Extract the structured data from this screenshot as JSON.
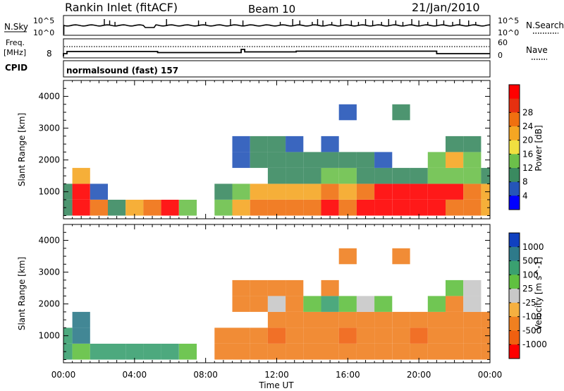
{
  "header": {
    "station": "Rankin Inlet (fitACF)",
    "beam": "Beam 10",
    "date": "21/Jan/2010"
  },
  "nsky_panel": {
    "left_label": "N.Sky",
    "left_ticks": [
      "10^5",
      "10^0"
    ],
    "right_ticks": [
      "10^5",
      "10^0"
    ],
    "right_label": "N.Search",
    "right_label_style": "dotted line"
  },
  "freq_panel": {
    "left_label_1": "Freq.",
    "left_label_2": "[MHz]",
    "left_tick": "8",
    "right_ticks": [
      "60",
      "0"
    ],
    "right_label": "Nave",
    "right_label_style": "dotted line"
  },
  "cpid_panel": {
    "label": "CPID",
    "value": "normalsound (fast) 157"
  },
  "x_axis": {
    "label": "Time UT",
    "ticks": [
      "00:00",
      "04:00",
      "08:00",
      "12:00",
      "16:00",
      "20:00",
      "00:00"
    ]
  },
  "panels": [
    {
      "id": "power",
      "ylabel": "Slant Range [km]",
      "yticks": [
        "1000",
        "2000",
        "3000",
        "4000"
      ],
      "ylim": [
        150,
        4500
      ],
      "colorbar": {
        "label": "Power [dB]",
        "ticks": [
          "4",
          "8",
          "12",
          "16",
          "20",
          "24",
          "28"
        ],
        "colors": [
          "#0000ff",
          "#2555b8",
          "#3a8a60",
          "#6cc04a",
          "#f0e040",
          "#f5a623",
          "#f07010",
          "#e63010",
          "#ff0000"
        ]
      }
    },
    {
      "id": "velocity",
      "ylabel": "Slant Range [km]",
      "yticks": [
        "1000",
        "2000",
        "3000",
        "4000"
      ],
      "ylim": [
        150,
        4500
      ],
      "colorbar": {
        "label": "Velocity [m s^-1]",
        "ticks": [
          "1000",
          "500",
          "100",
          "25",
          "-25",
          "-100",
          "-500",
          "-1000"
        ],
        "colors": [
          "#1040c0",
          "#2e7a8a",
          "#3aa070",
          "#60c040",
          "#c8c8c8",
          "#f5b040",
          "#f08020",
          "#f06010",
          "#ff0000"
        ]
      }
    }
  ],
  "chart_data": {
    "type": "heatmap",
    "x": [
      "00:00",
      "01:00",
      "02:00",
      "03:00",
      "04:00",
      "05:00",
      "06:00",
      "07:00",
      "08:00",
      "09:00",
      "10:00",
      "11:00",
      "12:00",
      "13:00",
      "14:00",
      "15:00",
      "16:00",
      "17:00",
      "18:00",
      "19:00",
      "20:00",
      "21:00",
      "22:00",
      "23:00",
      "24:00"
    ],
    "y": [
      500,
      1000,
      1500,
      2000,
      2500,
      3000,
      3500,
      4000
    ],
    "series": [
      {
        "name": "Power [dB]",
        "values": [
          [
            12,
            26,
            22,
            12,
            18,
            24,
            26,
            16,
            0,
            16,
            20,
            22,
            24,
            22,
            24,
            26,
            22,
            26,
            28,
            28,
            26,
            26,
            24,
            22,
            20
          ],
          [
            10,
            28,
            8,
            0,
            0,
            0,
            0,
            0,
            0,
            12,
            16,
            18,
            20,
            18,
            20,
            22,
            18,
            24,
            28,
            28,
            26,
            26,
            28,
            24,
            20
          ],
          [
            0,
            20,
            0,
            0,
            0,
            0,
            0,
            0,
            0,
            0,
            0,
            0,
            10,
            12,
            12,
            14,
            14,
            12,
            12,
            10,
            12,
            14,
            16,
            14,
            12
          ],
          [
            0,
            0,
            0,
            0,
            0,
            0,
            0,
            0,
            0,
            0,
            8,
            12,
            10,
            12,
            10,
            12,
            12,
            10,
            8,
            0,
            0,
            16,
            20,
            16,
            0
          ],
          [
            0,
            0,
            0,
            0,
            0,
            0,
            0,
            0,
            0,
            0,
            8,
            10,
            10,
            8,
            0,
            8,
            0,
            0,
            0,
            0,
            0,
            0,
            12,
            10,
            0
          ],
          [
            0,
            0,
            0,
            0,
            0,
            0,
            0,
            0,
            0,
            0,
            0,
            0,
            0,
            0,
            0,
            0,
            0,
            0,
            0,
            0,
            0,
            0,
            0,
            0,
            0
          ],
          [
            0,
            0,
            0,
            0,
            0,
            0,
            0,
            0,
            0,
            0,
            0,
            0,
            0,
            0,
            0,
            0,
            8,
            0,
            0,
            10,
            0,
            0,
            0,
            0,
            0
          ],
          [
            0,
            0,
            0,
            0,
            0,
            0,
            0,
            0,
            0,
            0,
            0,
            0,
            0,
            0,
            0,
            0,
            0,
            0,
            0,
            0,
            0,
            0,
            0,
            0,
            0
          ]
        ]
      },
      {
        "name": "Velocity [m s^-1]",
        "values": [
          [
            100,
            25,
            100,
            100,
            100,
            100,
            100,
            25,
            0,
            -100,
            -100,
            -100,
            -100,
            -100,
            -100,
            -100,
            -100,
            -100,
            -100,
            -100,
            -100,
            -100,
            -100,
            -100,
            -100
          ],
          [
            100,
            500,
            0,
            0,
            0,
            0,
            0,
            0,
            0,
            -100,
            -100,
            -100,
            -500,
            -100,
            -100,
            -100,
            -500,
            -100,
            -100,
            -100,
            -500,
            -100,
            -100,
            -100,
            -100
          ],
          [
            0,
            500,
            0,
            0,
            0,
            0,
            0,
            0,
            0,
            0,
            0,
            0,
            -100,
            -100,
            -100,
            -100,
            -100,
            -100,
            -100,
            -100,
            -100,
            -100,
            -100,
            -100,
            -100
          ],
          [
            0,
            0,
            0,
            0,
            0,
            0,
            0,
            0,
            0,
            0,
            -100,
            -100,
            -25,
            -100,
            25,
            100,
            25,
            -25,
            25,
            0,
            0,
            25,
            -100,
            -25,
            0
          ],
          [
            0,
            0,
            0,
            0,
            0,
            0,
            0,
            0,
            0,
            0,
            -100,
            -100,
            -100,
            -100,
            0,
            -100,
            0,
            0,
            0,
            0,
            0,
            0,
            25,
            -25,
            0
          ],
          [
            0,
            0,
            0,
            0,
            0,
            0,
            0,
            0,
            0,
            0,
            0,
            0,
            0,
            0,
            0,
            0,
            0,
            0,
            0,
            0,
            0,
            0,
            0,
            0,
            0
          ],
          [
            0,
            0,
            0,
            0,
            0,
            0,
            0,
            0,
            0,
            0,
            0,
            0,
            0,
            0,
            0,
            0,
            -100,
            0,
            0,
            -100,
            0,
            0,
            0,
            0,
            0
          ],
          [
            0,
            0,
            0,
            0,
            0,
            0,
            0,
            0,
            0,
            0,
            0,
            0,
            0,
            0,
            0,
            0,
            0,
            0,
            0,
            0,
            0,
            0,
            0,
            0,
            0
          ]
        ]
      }
    ],
    "xlabel": "Time UT",
    "ylabel": "Slant Range [km]",
    "ylim": [
      150,
      4500
    ],
    "grid": false,
    "legend": "right"
  }
}
